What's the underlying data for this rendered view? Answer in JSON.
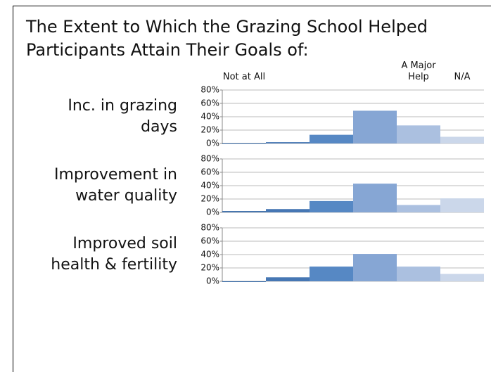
{
  "header": {
    "title": "The Extent to Which the Grazing School Helped Participants Attain Their Goals of:"
  },
  "chart_data": [
    {
      "type": "bar",
      "title_lines": [
        "Inc. in grazing",
        "days"
      ],
      "categories": [
        "Not at All",
        null,
        null,
        null,
        "A Major Help",
        "N/A"
      ],
      "values": [
        0,
        2,
        13,
        49,
        27,
        10
      ],
      "colors": [
        "#3a6ca8",
        "#4677b4",
        "#5688c4",
        "#86a6d4",
        "#abc0e0",
        "#cbd7ea"
      ],
      "ylim": [
        0,
        80
      ],
      "yticks": [
        {
          "value": 0,
          "label": "0%"
        },
        {
          "value": 20,
          "label": "20%"
        },
        {
          "value": 40,
          "label": "40%"
        },
        {
          "value": 60,
          "label": "60%"
        },
        {
          "value": 80,
          "label": "80%"
        }
      ],
      "grid": true
    },
    {
      "type": "bar",
      "title_lines": [
        "Improvement in",
        "water quality"
      ],
      "values": [
        2,
        5,
        17,
        43,
        11,
        21
      ],
      "colors": [
        "#3a6ca8",
        "#4677b4",
        "#5688c4",
        "#86a6d4",
        "#abc0e0",
        "#cbd7ea"
      ],
      "ylim": [
        0,
        80
      ],
      "yticks": [
        {
          "value": 0,
          "label": "0%"
        },
        {
          "value": 20,
          "label": "20%"
        },
        {
          "value": 40,
          "label": "40%"
        },
        {
          "value": 60,
          "label": "60%"
        },
        {
          "value": 80,
          "label": "80%"
        }
      ],
      "grid": true
    },
    {
      "type": "bar",
      "title_lines": [
        "Improved soil",
        "health & fertility"
      ],
      "values": [
        0,
        6,
        22,
        41,
        22,
        11
      ],
      "colors": [
        "#3a6ca8",
        "#4677b4",
        "#5688c4",
        "#86a6d4",
        "#abc0e0",
        "#cbd7ea"
      ],
      "ylim": [
        0,
        80
      ],
      "yticks": [
        {
          "value": 0,
          "label": "0%"
        },
        {
          "value": 20,
          "label": "20%"
        },
        {
          "value": 40,
          "label": "40%"
        },
        {
          "value": 60,
          "label": "60%"
        },
        {
          "value": 80,
          "label": "80%"
        }
      ],
      "grid": true
    }
  ]
}
